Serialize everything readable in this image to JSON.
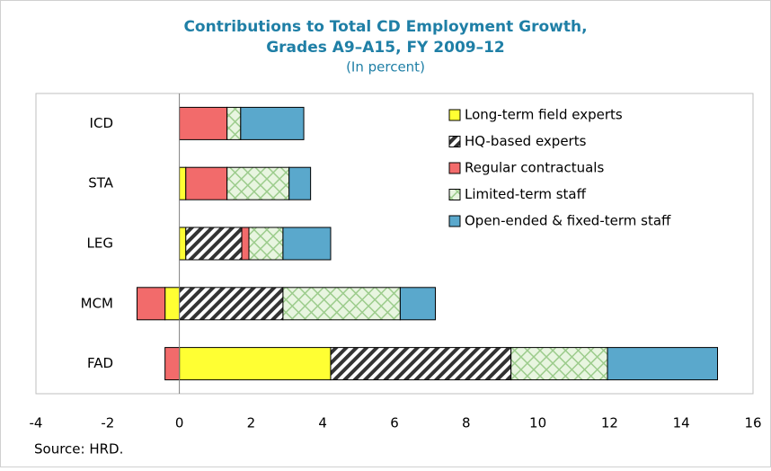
{
  "chart_data": {
    "type": "stacked-barh",
    "title": "Contributions to Total CD Employment Growth,",
    "title_line2": "Grades A9–A15, FY 2009–12",
    "subtitle": "(In percent)",
    "source": "Source: HRD.",
    "categories": [
      "ICD",
      "STA",
      "LEG",
      "MCM",
      "FAD"
    ],
    "series": [
      {
        "name": "Long-term field experts",
        "color": "#ffff33",
        "pattern": "solid",
        "values": [
          0,
          0.18,
          0.18,
          -0.4,
          4.22
        ]
      },
      {
        "name": "HQ-based experts",
        "color": "#333333",
        "pattern": "diagonal-hatch",
        "values": [
          0,
          0,
          1.56,
          2.89,
          5.03
        ]
      },
      {
        "name": "Regular contractuals",
        "color": "#f26b6b",
        "pattern": "solid",
        "values": [
          1.33,
          1.15,
          0.2,
          -0.78,
          -0.4
        ]
      },
      {
        "name": "Limited-term staff",
        "color": "#9ccc8c",
        "pattern": "cross-hatch",
        "values": [
          0.38,
          1.73,
          0.95,
          3.27,
          2.69
        ]
      },
      {
        "name": "Open-ended & fixed-term staff",
        "color": "#5aa8cc",
        "pattern": "solid",
        "values": [
          1.76,
          0.6,
          1.33,
          0.98,
          3.07
        ]
      }
    ],
    "xlim": [
      -4,
      16
    ],
    "xticks": [
      -4,
      -2,
      0,
      2,
      4,
      6,
      8,
      10,
      12,
      14,
      16
    ],
    "legend": "upper right"
  }
}
